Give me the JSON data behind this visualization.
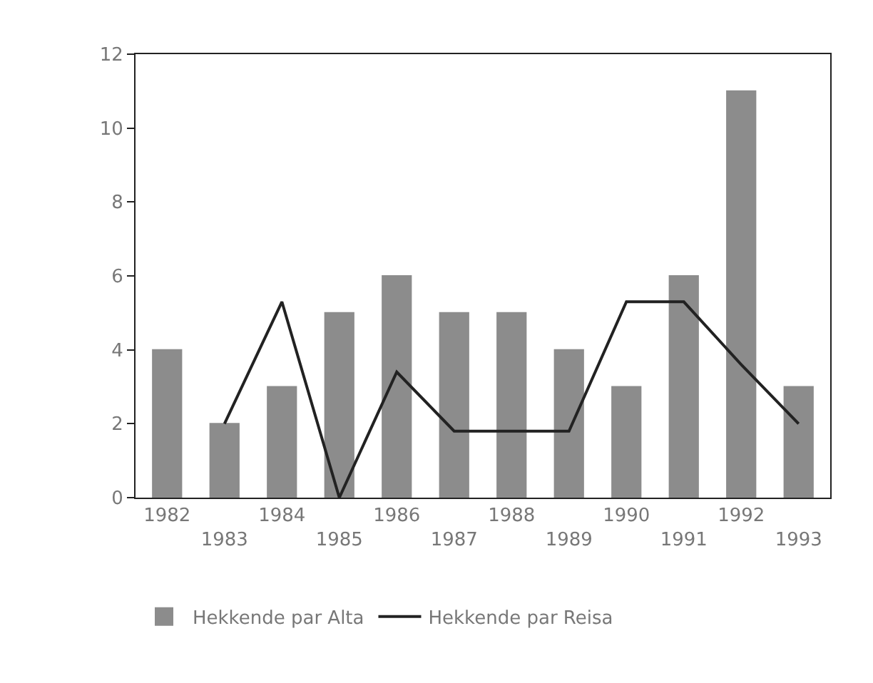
{
  "chart_data": {
    "type": "bar",
    "categories": [
      "1982",
      "1983",
      "1984",
      "1985",
      "1986",
      "1987",
      "1988",
      "1989",
      "1990",
      "1991",
      "1992",
      "1993"
    ],
    "series": [
      {
        "name": "Hekkende par Alta",
        "color": "#8c8c8c",
        "values": [
          4,
          2,
          3,
          5,
          6,
          5,
          5,
          4,
          3,
          6,
          11,
          3
        ]
      },
      {
        "name": "Hekkende par Reisa",
        "type": "line",
        "color": "#222222",
        "values": [
          null,
          2,
          5.3,
          0,
          3.4,
          1.8,
          1.8,
          1.8,
          5.3,
          5.3,
          3.6,
          2
        ]
      }
    ],
    "ylim": [
      0,
      12
    ],
    "yticks": [
      0,
      2,
      4,
      6,
      8,
      10,
      12
    ],
    "grid": false,
    "legend": "bottom",
    "marker": "none",
    "line_style": "solid"
  }
}
